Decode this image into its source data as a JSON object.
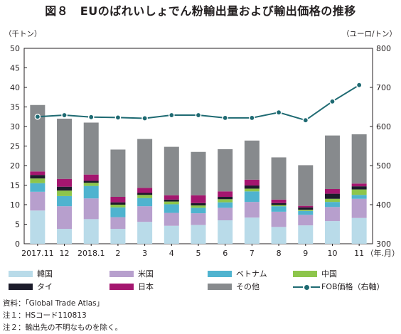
{
  "title": "図８　EUのばれいしょでん粉輸出量および輸出価格の推移",
  "unit_left": "（千トン）",
  "unit_right": "（ユーロ/トン）",
  "x_unit": "（年.月）",
  "notes": [
    "資料：「Global Trade Atlas」",
    "注１：HSコード110813",
    "注２：輸出先の不明なものを除く。"
  ],
  "colors": {
    "韓国": "#b9dbe9",
    "米国": "#b79fcd",
    "ベトナム": "#4fb3cf",
    "中国": "#8dc54b",
    "タイ": "#1c1c2b",
    "日本": "#a4166f",
    "その他": "#878a8d",
    "FOB": "#1e6a72"
  },
  "chart_data": {
    "type": "bar",
    "stacked": true,
    "categories": [
      "2017.11",
      "12",
      "2018.1",
      "2",
      "3",
      "4",
      "5",
      "6",
      "7",
      "8",
      "9",
      "10",
      "11"
    ],
    "y_left": {
      "min": 0,
      "max": 50,
      "ticks": [
        0,
        5,
        10,
        15,
        20,
        25,
        30,
        35,
        40,
        45,
        50
      ]
    },
    "y_right": {
      "min": 300,
      "max": 800,
      "ticks": [
        300,
        400,
        500,
        600,
        700,
        800
      ]
    },
    "series": [
      {
        "name": "韓国",
        "values": [
          8.5,
          3.8,
          6.3,
          3.8,
          5.6,
          4.6,
          4.8,
          6.0,
          6.7,
          4.3,
          4.7,
          5.8,
          6.6
        ]
      },
      {
        "name": "米国",
        "values": [
          4.8,
          5.8,
          5.3,
          3.0,
          4.0,
          3.3,
          3.0,
          3.2,
          4.0,
          3.9,
          2.7,
          3.6,
          4.9
        ]
      },
      {
        "name": "ベトナム",
        "values": [
          2.2,
          2.6,
          3.2,
          2.5,
          2.1,
          2.2,
          1.4,
          1.4,
          2.7,
          1.4,
          1.0,
          1.3,
          1.0
        ]
      },
      {
        "name": "中国",
        "values": [
          1.2,
          1.4,
          0.8,
          0.7,
          0.8,
          0.7,
          0.6,
          0.8,
          0.7,
          0.3,
          0.3,
          0.8,
          1.4
        ]
      },
      {
        "name": "タイ",
        "values": [
          0.9,
          1.0,
          0.5,
          0.6,
          0.5,
          0.5,
          0.6,
          0.6,
          0.8,
          0.5,
          0.6,
          1.3,
          0.8
        ]
      },
      {
        "name": "日本",
        "values": [
          0.9,
          2.0,
          1.6,
          1.4,
          1.3,
          1.1,
          2.0,
          1.4,
          1.5,
          0.9,
          0.4,
          1.2,
          0.7
        ]
      },
      {
        "name": "その他",
        "values": [
          17.0,
          15.4,
          13.3,
          12.1,
          12.5,
          12.4,
          11.1,
          10.8,
          10.0,
          10.8,
          10.4,
          13.7,
          12.6
        ]
      }
    ],
    "line": {
      "name": "FOB価格（右軸）",
      "axis": "right",
      "values": [
        625,
        629,
        624,
        623,
        621,
        629,
        629,
        622,
        622,
        636,
        616,
        664,
        706
      ]
    },
    "grid": false,
    "legend_position": "bottom"
  }
}
